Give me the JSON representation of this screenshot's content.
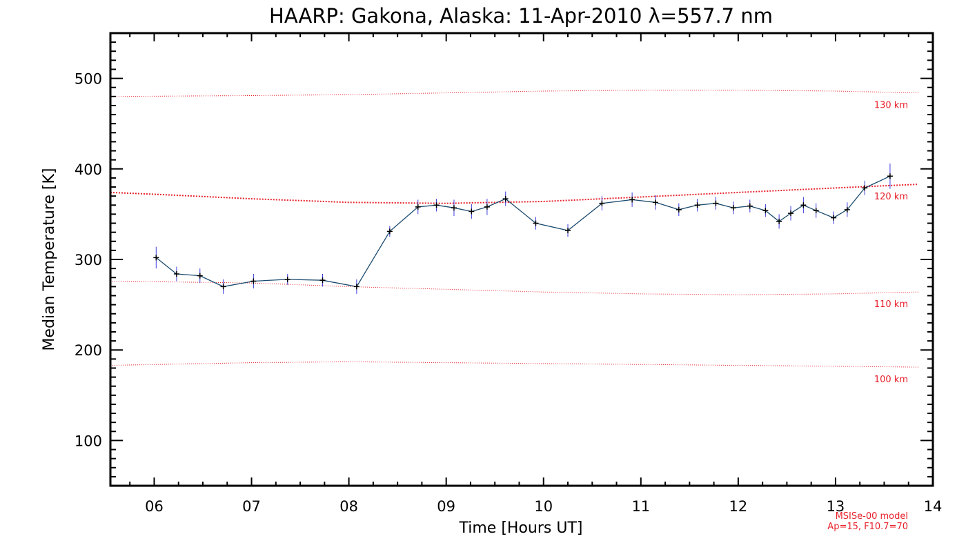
{
  "chart_data": {
    "type": "line",
    "title": "HAARP: Gakona,  Alaska: 11-Apr-2010 λ=557.7 nm",
    "xlabel": "Time [Hours UT]",
    "ylabel": "Median Temperature [K]",
    "xlim": [
      5.55,
      14.0
    ],
    "ylim": [
      50,
      550
    ],
    "x_ticks": [
      {
        "value": 6,
        "label": "06"
      },
      {
        "value": 7,
        "label": "07"
      },
      {
        "value": 8,
        "label": "08"
      },
      {
        "value": 9,
        "label": "09"
      },
      {
        "value": 10,
        "label": "10"
      },
      {
        "value": 11,
        "label": "11"
      },
      {
        "value": 12,
        "label": "12"
      },
      {
        "value": 13,
        "label": "13"
      },
      {
        "value": 14,
        "label": "14"
      }
    ],
    "y_ticks": [
      {
        "value": 100,
        "label": "100"
      },
      {
        "value": 200,
        "label": "200"
      },
      {
        "value": 300,
        "label": "300"
      },
      {
        "value": 400,
        "label": "400"
      },
      {
        "value": 500,
        "label": "500"
      }
    ],
    "grid": false,
    "series": [
      {
        "color": "#1a4a6e",
        "marker": "plus",
        "error_color": "#3a3adc",
        "x": [
          6.02,
          6.23,
          6.47,
          6.71,
          7.02,
          7.37,
          7.73,
          8.08,
          8.42,
          8.71,
          8.9,
          9.08,
          9.26,
          9.42,
          9.61,
          9.92,
          10.25,
          10.6,
          10.91,
          11.15,
          11.39,
          11.58,
          11.77,
          11.95,
          12.12,
          12.28,
          12.42,
          12.54,
          12.67,
          12.8,
          12.98,
          13.12,
          13.3,
          13.56
        ],
        "y": [
          302,
          284,
          282,
          270,
          276,
          278,
          277,
          270,
          331,
          358,
          360,
          357,
          353,
          358,
          367,
          340,
          332,
          362,
          366,
          363,
          355,
          360,
          362,
          357,
          359,
          354,
          342,
          351,
          360,
          354,
          346,
          355,
          379,
          392
        ],
        "yerr": [
          12,
          8,
          8,
          8,
          8,
          6,
          7,
          8,
          6,
          8,
          7,
          9,
          8,
          9,
          8,
          7,
          7,
          8,
          8,
          8,
          7,
          7,
          7,
          7,
          7,
          7,
          8,
          8,
          9,
          8,
          7,
          8,
          8,
          14
        ]
      }
    ],
    "model_lines": [
      {
        "label": "130 km",
        "color": "#e8202a",
        "style": "dotted",
        "x": [
          5.55,
          7.0,
          8.0,
          9.0,
          10.0,
          11.0,
          12.0,
          13.0,
          13.85
        ],
        "y": [
          480,
          481,
          482,
          484,
          486,
          487,
          487,
          486,
          484
        ]
      },
      {
        "label": "120 km",
        "color": "#e8202a",
        "style": "dotted-bold",
        "x": [
          5.55,
          6.0,
          7.0,
          8.0,
          9.0,
          10.0,
          11.0,
          12.0,
          13.0,
          13.85
        ],
        "y": [
          374,
          372,
          367,
          363,
          362,
          364,
          369,
          374,
          379,
          383
        ]
      },
      {
        "label": "110 km",
        "color": "#e8202a",
        "style": "dotted",
        "x": [
          5.55,
          7.0,
          8.0,
          9.0,
          10.0,
          11.0,
          12.0,
          13.0,
          13.85
        ],
        "y": [
          276,
          274,
          270,
          267,
          264,
          262,
          261,
          262,
          264
        ]
      },
      {
        "label": "100 km",
        "color": "#e8202a",
        "style": "dotted",
        "x": [
          5.55,
          7.0,
          8.0,
          9.0,
          10.0,
          11.0,
          12.0,
          13.0,
          13.85
        ],
        "y": [
          183,
          186,
          187,
          186,
          185,
          184,
          183,
          182,
          181
        ]
      }
    ],
    "model_note": [
      "MSISe-00 model",
      "Ap=15, F10.7=70"
    ]
  }
}
